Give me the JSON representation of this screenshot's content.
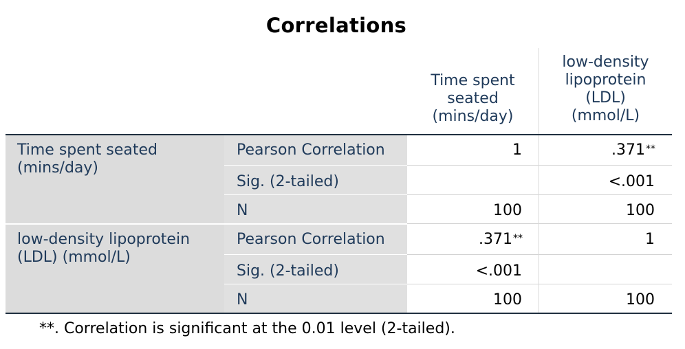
{
  "table": {
    "title": "Correlations",
    "columns": [
      {
        "lines": [
          "Time spent",
          "seated",
          "(mins/day)"
        ]
      },
      {
        "lines": [
          "low-density",
          "lipoprotein",
          "(LDL)",
          "(mmol/L)"
        ]
      }
    ],
    "row_groups": [
      {
        "label_lines": [
          "Time spent seated",
          "(mins/day)"
        ],
        "rows": [
          {
            "stat": "Pearson Correlation",
            "v1": "1",
            "v1_sup": "",
            "v2": ".371",
            "v2_sup": "**"
          },
          {
            "stat": "Sig. (2-tailed)",
            "v1": "",
            "v1_sup": "",
            "v2": "<.001",
            "v2_sup": ""
          },
          {
            "stat": "N",
            "v1": "100",
            "v1_sup": "",
            "v2": "100",
            "v2_sup": ""
          }
        ]
      },
      {
        "label_lines": [
          "low-density lipoprotein",
          "(LDL) (mmol/L)"
        ],
        "rows": [
          {
            "stat": "Pearson Correlation",
            "v1": ".371",
            "v1_sup": "**",
            "v2": "1",
            "v2_sup": ""
          },
          {
            "stat": "Sig. (2-tailed)",
            "v1": "<.001",
            "v1_sup": "",
            "v2": "",
            "v2_sup": ""
          },
          {
            "stat": "N",
            "v1": "100",
            "v1_sup": "",
            "v2": "100",
            "v2_sup": ""
          }
        ]
      }
    ],
    "footnote": "**. Correlation is significant at the 0.01 level (2-tailed)."
  }
}
